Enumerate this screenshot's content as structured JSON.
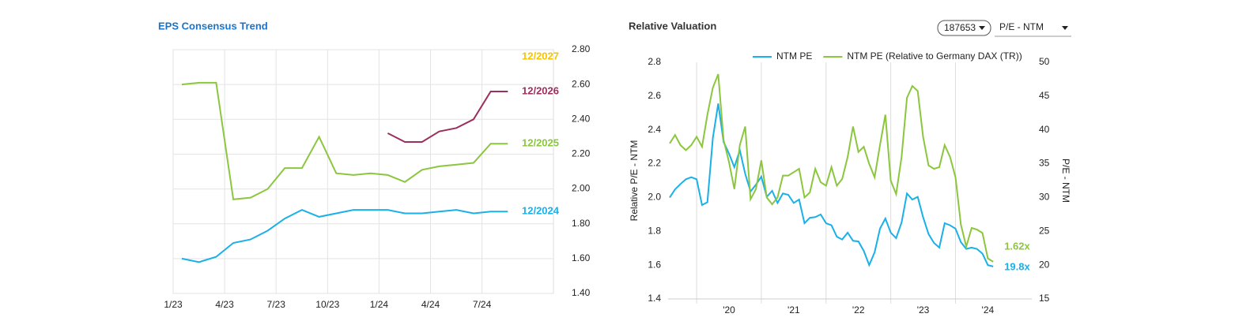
{
  "chart_data": [
    {
      "type": "line",
      "title": "EPS Consensus Trend",
      "categories": [
        "1/23",
        null,
        null,
        "4/23",
        null,
        null,
        "7/23",
        null,
        null,
        "10/23",
        null,
        null,
        "1/24",
        null,
        null,
        "4/24",
        null,
        null,
        "7/24",
        null
      ],
      "series": [
        {
          "name": "12/2027",
          "color": "#f5c400",
          "values": [
            null,
            null,
            null,
            null,
            null,
            null,
            null,
            null,
            null,
            null,
            null,
            null,
            null,
            null,
            null,
            null,
            null,
            null,
            null,
            null
          ]
        },
        {
          "name": "12/2026",
          "color": "#9b2f5e",
          "values": [
            null,
            null,
            null,
            null,
            null,
            null,
            null,
            null,
            null,
            null,
            null,
            null,
            2.32,
            2.27,
            2.27,
            2.33,
            2.35,
            2.4,
            2.56,
            2.56
          ]
        },
        {
          "name": "12/2025",
          "color": "#8cc63f",
          "values": [
            2.6,
            2.61,
            2.61,
            1.94,
            1.95,
            2.0,
            2.12,
            2.12,
            2.3,
            2.09,
            2.08,
            2.09,
            2.08,
            2.04,
            2.11,
            2.13,
            2.14,
            2.15,
            2.26,
            2.26
          ]
        },
        {
          "name": "12/2024",
          "color": "#1ab0e8",
          "values": [
            1.6,
            1.58,
            1.61,
            1.69,
            1.71,
            1.76,
            1.83,
            1.88,
            1.84,
            1.86,
            1.88,
            1.88,
            1.88,
            1.86,
            1.86,
            1.87,
            1.88,
            1.86,
            1.87,
            1.87
          ]
        }
      ],
      "ylim": [
        1.4,
        2.8
      ],
      "yticks": [
        {
          "value": 1.4,
          "label": "1.40"
        },
        {
          "value": 1.6,
          "label": "1.60"
        },
        {
          "value": 1.8,
          "label": "1.80"
        },
        {
          "value": 2.0,
          "label": "2.00"
        },
        {
          "value": 2.2,
          "label": "2.20"
        },
        {
          "value": 2.4,
          "label": "2.40"
        },
        {
          "value": 2.6,
          "label": "2.60"
        },
        {
          "value": 2.8,
          "label": "2.80"
        }
      ],
      "grid": true
    },
    {
      "type": "line",
      "title": "Relative Valuation",
      "controls": {
        "selector": "187653",
        "metric": "P/E - NTM"
      },
      "y_label": "Relative P/E - NTM",
      "y2_label": "P/E - NTM",
      "categories": [
        null,
        null,
        null,
        null,
        null,
        null,
        null,
        null,
        null,
        null,
        null,
        "'20",
        null,
        null,
        null,
        null,
        null,
        null,
        null,
        null,
        null,
        null,
        null,
        "'21",
        null,
        null,
        null,
        null,
        null,
        null,
        null,
        null,
        null,
        null,
        null,
        "'22",
        null,
        null,
        null,
        null,
        null,
        null,
        null,
        null,
        null,
        null,
        null,
        "'23",
        null,
        null,
        null,
        null,
        null,
        null,
        null,
        null,
        null,
        null,
        null,
        "'24",
        null
      ],
      "series": [
        {
          "name": "NTM PE",
          "color": "#1ab0e8",
          "axis": "y2",
          "values": [
            30.0,
            31.2,
            32.0,
            32.7,
            33.0,
            32.7,
            28.9,
            29.3,
            38.8,
            43.9,
            38.2,
            36.5,
            34.5,
            37.0,
            33.5,
            30.9,
            31.9,
            33.1,
            30.1,
            31.0,
            29.2,
            30.6,
            30.4,
            29.2,
            29.7,
            26.2,
            27.0,
            27.1,
            27.5,
            26.2,
            25.9,
            24.2,
            23.8,
            24.8,
            23.6,
            23.5,
            22.1,
            20.0,
            21.9,
            25.4,
            26.9,
            24.8,
            24.0,
            26.3,
            30.6,
            29.7,
            30.1,
            27.1,
            24.6,
            23.3,
            22.6,
            26.2,
            25.9,
            25.4,
            23.4,
            22.4,
            22.6,
            22.4,
            21.7,
            20.0,
            19.8
          ],
          "value_labels": [
            null,
            null,
            null,
            null,
            null,
            null,
            null,
            null,
            null,
            null,
            null,
            null,
            null,
            null,
            null,
            null,
            null,
            null,
            null,
            null,
            null,
            null,
            null,
            null,
            null,
            null,
            null,
            null,
            null,
            null,
            null,
            null,
            null,
            null,
            null,
            null,
            null,
            null,
            null,
            null,
            null,
            null,
            null,
            null,
            null,
            null,
            null,
            null,
            null,
            null,
            null,
            null,
            null,
            null,
            null,
            null,
            null,
            null,
            null,
            null,
            "19.8x"
          ]
        },
        {
          "name": "NTM PE (Relative to Germany DAX (TR))",
          "color": "#8cc63f",
          "values": [
            2.32,
            2.37,
            2.31,
            2.28,
            2.31,
            2.36,
            2.3,
            2.49,
            2.65,
            2.73,
            2.34,
            2.21,
            2.05,
            2.31,
            2.42,
            1.99,
            2.05,
            2.22,
            2.0,
            1.96,
            2.0,
            2.13,
            2.13,
            2.15,
            2.17,
            2.0,
            2.03,
            2.17,
            2.09,
            2.07,
            2.18,
            2.07,
            2.11,
            2.24,
            2.42,
            2.27,
            2.3,
            2.2,
            2.12,
            2.31,
            2.49,
            2.1,
            2.02,
            2.24,
            2.59,
            2.66,
            2.63,
            2.36,
            2.19,
            2.17,
            2.18,
            2.31,
            2.24,
            2.12,
            1.84,
            1.71,
            1.82,
            1.81,
            1.79,
            1.64,
            1.62
          ],
          "value_labels": [
            null,
            null,
            null,
            null,
            null,
            null,
            null,
            null,
            null,
            null,
            null,
            null,
            null,
            null,
            null,
            null,
            null,
            null,
            null,
            null,
            null,
            null,
            null,
            null,
            null,
            null,
            null,
            null,
            null,
            null,
            null,
            null,
            null,
            null,
            null,
            null,
            null,
            null,
            null,
            null,
            null,
            null,
            null,
            null,
            null,
            null,
            null,
            null,
            null,
            null,
            null,
            null,
            null,
            null,
            null,
            null,
            null,
            null,
            null,
            null,
            "1.62x"
          ]
        }
      ],
      "ylim": [
        1.4,
        2.8
      ],
      "yticks": [
        1.4,
        1.6,
        1.8,
        {
          "value": 2.0,
          "label": "2.0"
        },
        2.2,
        2.4,
        2.6,
        2.8
      ],
      "y2lim": [
        15,
        50
      ],
      "y2ticks": [
        15,
        20,
        25,
        30,
        35,
        40,
        45,
        50
      ],
      "legend": "top"
    }
  ]
}
